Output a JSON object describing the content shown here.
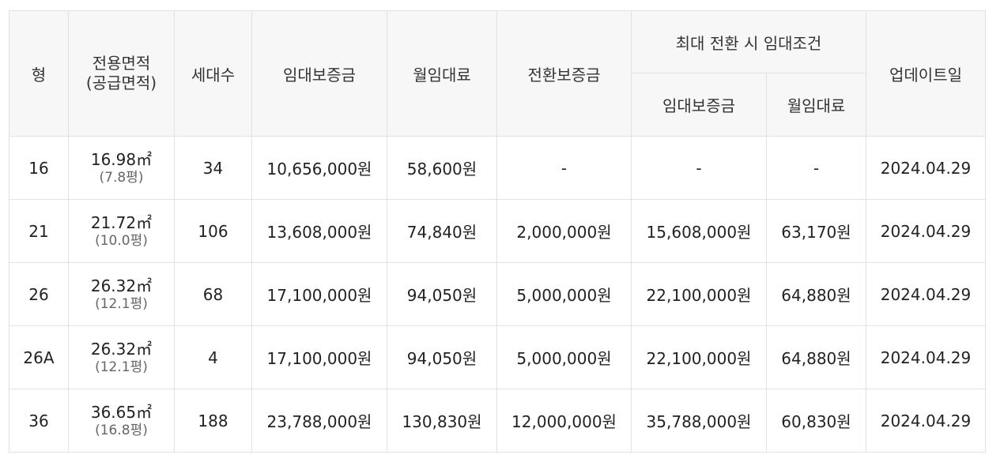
{
  "headers": {
    "type": "형",
    "area": "전용면적\n(공급면적)",
    "area_line1": "전용면적",
    "area_line2": "(공급면적)",
    "households": "세대수",
    "deposit": "임대보증금",
    "monthly": "월임대료",
    "conversion": "전환보증금",
    "max_group": "최대 전환 시 임대조건",
    "max_deposit": "임대보증금",
    "max_monthly": "월임대료",
    "updated": "업데이트일"
  },
  "rows": [
    {
      "type": "16",
      "area": "16.98㎡",
      "pyeong": "(7.8평)",
      "households": "34",
      "deposit": "10,656,000원",
      "monthly": "58,600원",
      "conversion": "-",
      "max_deposit": "-",
      "max_monthly": "-",
      "updated": "2024.04.29"
    },
    {
      "type": "21",
      "area": "21.72㎡",
      "pyeong": "(10.0평)",
      "households": "106",
      "deposit": "13,608,000원",
      "monthly": "74,840원",
      "conversion": "2,000,000원",
      "max_deposit": "15,608,000원",
      "max_monthly": "63,170원",
      "updated": "2024.04.29"
    },
    {
      "type": "26",
      "area": "26.32㎡",
      "pyeong": "(12.1평)",
      "households": "68",
      "deposit": "17,100,000원",
      "monthly": "94,050원",
      "conversion": "5,000,000원",
      "max_deposit": "22,100,000원",
      "max_monthly": "64,880원",
      "updated": "2024.04.29"
    },
    {
      "type": "26A",
      "area": "26.32㎡",
      "pyeong": "(12.1평)",
      "households": "4",
      "deposit": "17,100,000원",
      "monthly": "94,050원",
      "conversion": "5,000,000원",
      "max_deposit": "22,100,000원",
      "max_monthly": "64,880원",
      "updated": "2024.04.29"
    },
    {
      "type": "36",
      "area": "36.65㎡",
      "pyeong": "(16.8평)",
      "households": "188",
      "deposit": "23,788,000원",
      "monthly": "130,830원",
      "conversion": "12,000,000원",
      "max_deposit": "35,788,000원",
      "max_monthly": "60,830원",
      "updated": "2024.04.29"
    }
  ]
}
